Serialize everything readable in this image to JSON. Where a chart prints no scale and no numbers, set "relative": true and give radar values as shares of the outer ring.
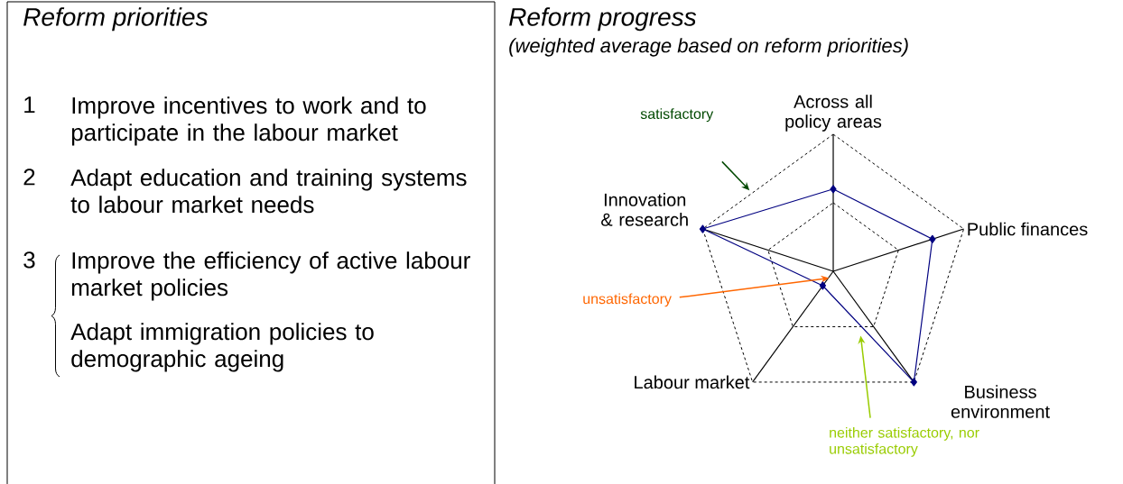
{
  "chart_data": [
    {
      "type": "other",
      "title": "Reform priorities",
      "annotations": [
        "1",
        "Improve incentives to work and to participate in the labour market",
        "2",
        "Adapt education and training systems to labour market needs",
        "3",
        "Improve the efficiency of active labour market policies",
        "Adapt immigration policies to demographic ageing"
      ]
    },
    {
      "type": "radar",
      "title": "Reform progress",
      "subtitle": "(weighted average based on reform priorities)",
      "categories": [
        "Across all policy areas",
        "Public finances",
        "Business environment",
        "Labour market",
        "Innovation & research"
      ],
      "relative": true,
      "grid": true,
      "marker": "diamond",
      "series": [
        {
          "color": "#000080",
          "values": [
            0.6,
            0.76,
            1,
            0.13,
            1
          ]
        }
      ],
      "annotations": [
        "satisfactory",
        "unsatisfactory",
        "neither satisfactory, nor unsatisfactory"
      ]
    }
  ]
}
